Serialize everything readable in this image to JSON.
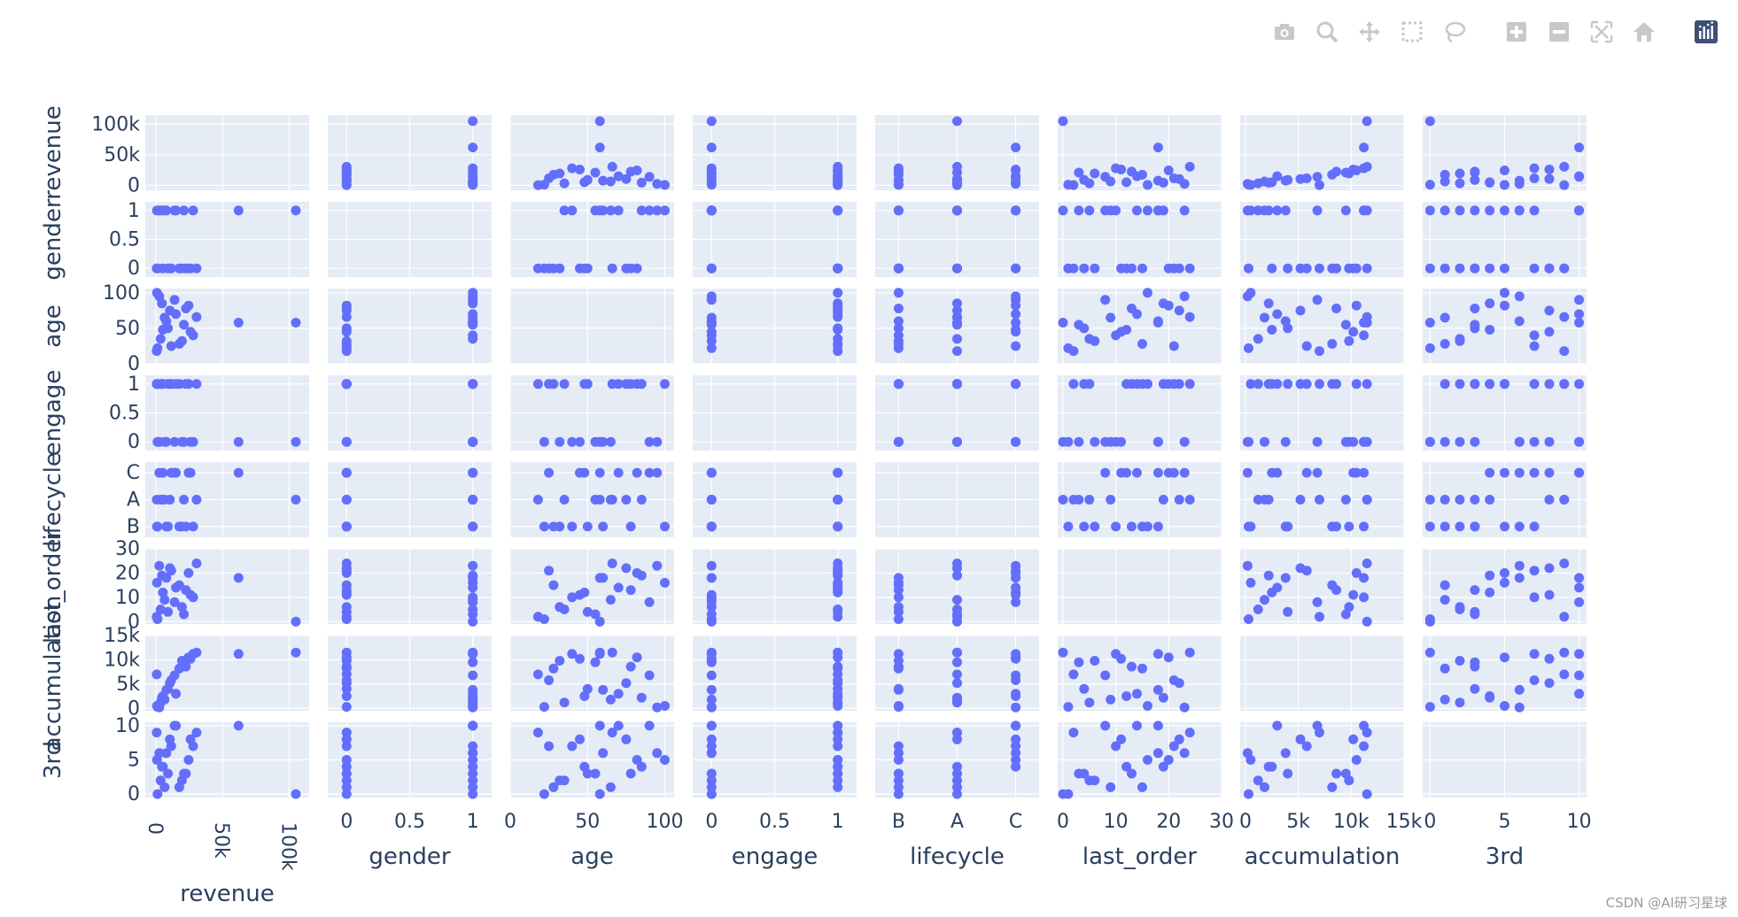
{
  "toolbar": {
    "buttons": [
      {
        "name": "camera-icon",
        "label": "Download plot as a png"
      },
      {
        "name": "zoom-icon",
        "label": "Zoom"
      },
      {
        "name": "pan-icon",
        "label": "Pan"
      },
      {
        "name": "box-select-icon",
        "label": "Box Select"
      },
      {
        "name": "lasso-select-icon",
        "label": "Lasso Select"
      },
      {
        "name": "zoom-in-icon",
        "label": "Zoom in"
      },
      {
        "name": "zoom-out-icon",
        "label": "Zoom out"
      },
      {
        "name": "autoscale-icon",
        "label": "Autoscale"
      },
      {
        "name": "reset-axes-icon",
        "label": "Reset axes"
      },
      {
        "name": "plotly-logo-icon",
        "label": "Produced with Plotly"
      }
    ]
  },
  "colors": {
    "marker": "#636efa",
    "panel": "#e5ecf6",
    "grid": "#ffffff",
    "text": "#2a3f5f"
  },
  "watermark": "CSDN @AI研习星球",
  "chart_data": {
    "type": "scatter",
    "subtype": "scatter_matrix",
    "title": "",
    "dimensions": [
      {
        "name": "revenue",
        "kind": "numeric",
        "range": [
          -8000,
          115000
        ],
        "ticks": [
          {
            "v": 0,
            "t": "0"
          },
          {
            "v": 50000,
            "t": "50k"
          },
          {
            "v": 100000,
            "t": "100k"
          }
        ],
        "xtick_angle": 90
      },
      {
        "name": "gender",
        "kind": "numeric",
        "range": [
          -0.15,
          1.15
        ],
        "ticks": [
          {
            "v": 0,
            "t": "0"
          },
          {
            "v": 0.5,
            "t": "0.5"
          },
          {
            "v": 1,
            "t": "1"
          }
        ]
      },
      {
        "name": "age",
        "kind": "numeric",
        "range": [
          0,
          106
        ],
        "ticks": [
          {
            "v": 0,
            "t": "0"
          },
          {
            "v": 50,
            "t": "50"
          },
          {
            "v": 100,
            "t": "100"
          }
        ]
      },
      {
        "name": "engage",
        "kind": "numeric",
        "range": [
          -0.15,
          1.15
        ],
        "ticks": [
          {
            "v": 0,
            "t": "0"
          },
          {
            "v": 0.5,
            "t": "0.5"
          },
          {
            "v": 1,
            "t": "1"
          }
        ]
      },
      {
        "name": "lifecycle",
        "kind": "category",
        "categories": [
          "B",
          "A",
          "C"
        ],
        "range": [
          -0.4,
          2.4
        ],
        "ticks": [
          {
            "v": 0,
            "t": "B"
          },
          {
            "v": 1,
            "t": "A"
          },
          {
            "v": 2,
            "t": "C"
          }
        ]
      },
      {
        "name": "last_order",
        "kind": "numeric",
        "range": [
          -1,
          30
        ],
        "ticks": [
          {
            "v": 0,
            "t": "0"
          },
          {
            "v": 10,
            "t": "10"
          },
          {
            "v": 20,
            "t": "20"
          },
          {
            "v": 30,
            "t": "30"
          }
        ]
      },
      {
        "name": "accumulation",
        "kind": "numeric",
        "range": [
          -500,
          15000
        ],
        "ticks": [
          {
            "v": 0,
            "t": "0"
          },
          {
            "v": 5000,
            "t": "5k"
          },
          {
            "v": 10000,
            "t": "10k"
          },
          {
            "v": 15000,
            "t": "15k"
          }
        ]
      },
      {
        "name": "3rd",
        "kind": "numeric",
        "range": [
          -0.5,
          10.5
        ],
        "ticks": [
          {
            "v": 0,
            "t": "0"
          },
          {
            "v": 5,
            "t": "5"
          },
          {
            "v": 10,
            "t": "10"
          }
        ]
      }
    ],
    "records": [
      [
        1200,
        0,
        22,
        0,
        0,
        1,
        300,
        0
      ],
      [
        3500,
        1,
        35,
        1,
        1,
        5,
        1200,
        2
      ],
      [
        5200,
        0,
        48,
        1,
        2,
        12,
        2500,
        4
      ],
      [
        7800,
        1,
        60,
        0,
        0,
        18,
        3800,
        6
      ],
      [
        10500,
        0,
        75,
        1,
        1,
        22,
        5200,
        8
      ],
      [
        14000,
        1,
        90,
        0,
        2,
        8,
        6800,
        10
      ],
      [
        17500,
        0,
        28,
        1,
        0,
        15,
        8200,
        1
      ],
      [
        21000,
        1,
        55,
        0,
        1,
        3,
        9500,
        3
      ],
      [
        24500,
        0,
        82,
        1,
        2,
        20,
        10500,
        5
      ],
      [
        28000,
        1,
        40,
        0,
        0,
        10,
        11200,
        7
      ],
      [
        30500,
        0,
        66,
        1,
        1,
        24,
        11500,
        9
      ],
      [
        62000,
        1,
        58,
        0,
        2,
        18,
        11200,
        10
      ],
      [
        105000,
        1,
        58,
        0,
        1,
        0,
        11500,
        0
      ],
      [
        9000,
        0,
        50,
        1,
        0,
        4,
        4000,
        3
      ],
      [
        2500,
        1,
        95,
        0,
        2,
        23,
        200,
        6
      ],
      [
        600,
        0,
        18,
        1,
        1,
        2,
        7000,
        9
      ],
      [
        15000,
        1,
        70,
        1,
        2,
        14,
        3000,
        10
      ],
      [
        19500,
        0,
        32,
        0,
        0,
        6,
        9800,
        2
      ],
      [
        4500,
        1,
        85,
        1,
        1,
        19,
        2200,
        4
      ],
      [
        26000,
        0,
        45,
        0,
        2,
        11,
        10200,
        8
      ],
      [
        800,
        1,
        100,
        1,
        0,
        16,
        500,
        5
      ],
      [
        11500,
        0,
        25,
        1,
        2,
        21,
        5800,
        7
      ],
      [
        6500,
        1,
        65,
        0,
        1,
        9,
        1800,
        1
      ],
      [
        22500,
        0,
        78,
        1,
        0,
        13,
        8600,
        3
      ]
    ]
  }
}
